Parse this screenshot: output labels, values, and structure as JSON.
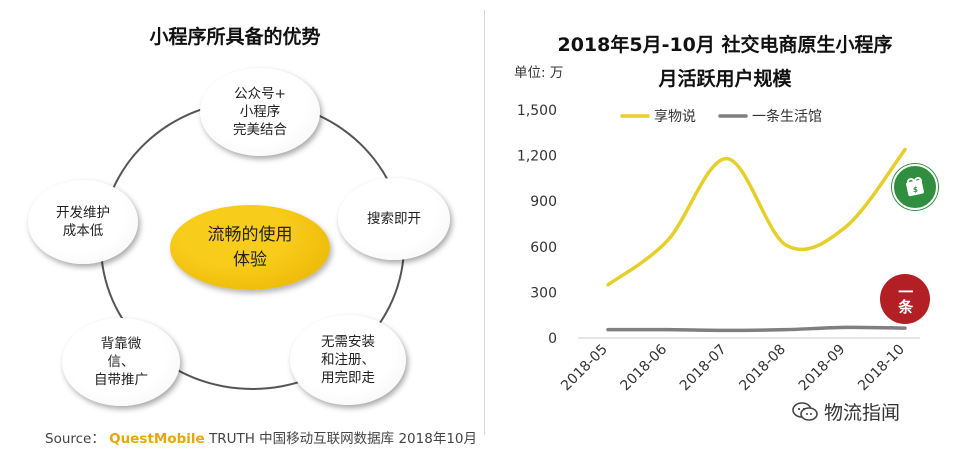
{
  "left_panel": {
    "title": "小程序所具备的优势",
    "center": [
      "流畅的使用",
      "体验"
    ],
    "bubbles": {
      "top": [
        "公众号+",
        "小程序",
        "完美结合"
      ],
      "right": [
        "搜索即开"
      ],
      "left": [
        "开发维护",
        "成本低"
      ],
      "bottom_left": [
        "背靠微",
        "信、",
        "自带推广"
      ],
      "bottom_right": [
        "无需安装",
        "和注册、",
        "用完即走"
      ]
    }
  },
  "chart_title_line1": "2018年5月-10月 社交电商原生小程序",
  "chart_title_line2": "月活跃用户规模",
  "unit_label": "单位: 万",
  "badge_red_text": "一条",
  "source": {
    "prefix": "Source：",
    "brand": "QuestMobile",
    "suffix": " TRUTH 中国移动互联网数据库 2018年10月"
  },
  "watermark": "物流指闻",
  "colors": {
    "series1": "#e6cf2a",
    "series2": "#7f7f7f",
    "accent": "#f5c300"
  },
  "chart_data": {
    "type": "line",
    "title": "2018年5月-10月 社交电商原生小程序月活跃用户规模",
    "ylabel": "单位: 万",
    "xlabel": "",
    "categories": [
      "2018-05",
      "2018-06",
      "2018-07",
      "2018-08",
      "2018-09",
      "2018-10"
    ],
    "y_ticks": [
      "0",
      "300",
      "600",
      "900",
      "1,200",
      "1,500"
    ],
    "ylim": [
      0,
      1500
    ],
    "legend_position": "top",
    "grid": false,
    "smooth": true,
    "series": [
      {
        "name": "享物说",
        "color": "#e6cf2a",
        "values": [
          350,
          640,
          1180,
          610,
          730,
          1240
        ]
      },
      {
        "name": "一条生活馆",
        "color": "#7f7f7f",
        "values": [
          55,
          55,
          50,
          55,
          70,
          65
        ]
      }
    ]
  }
}
